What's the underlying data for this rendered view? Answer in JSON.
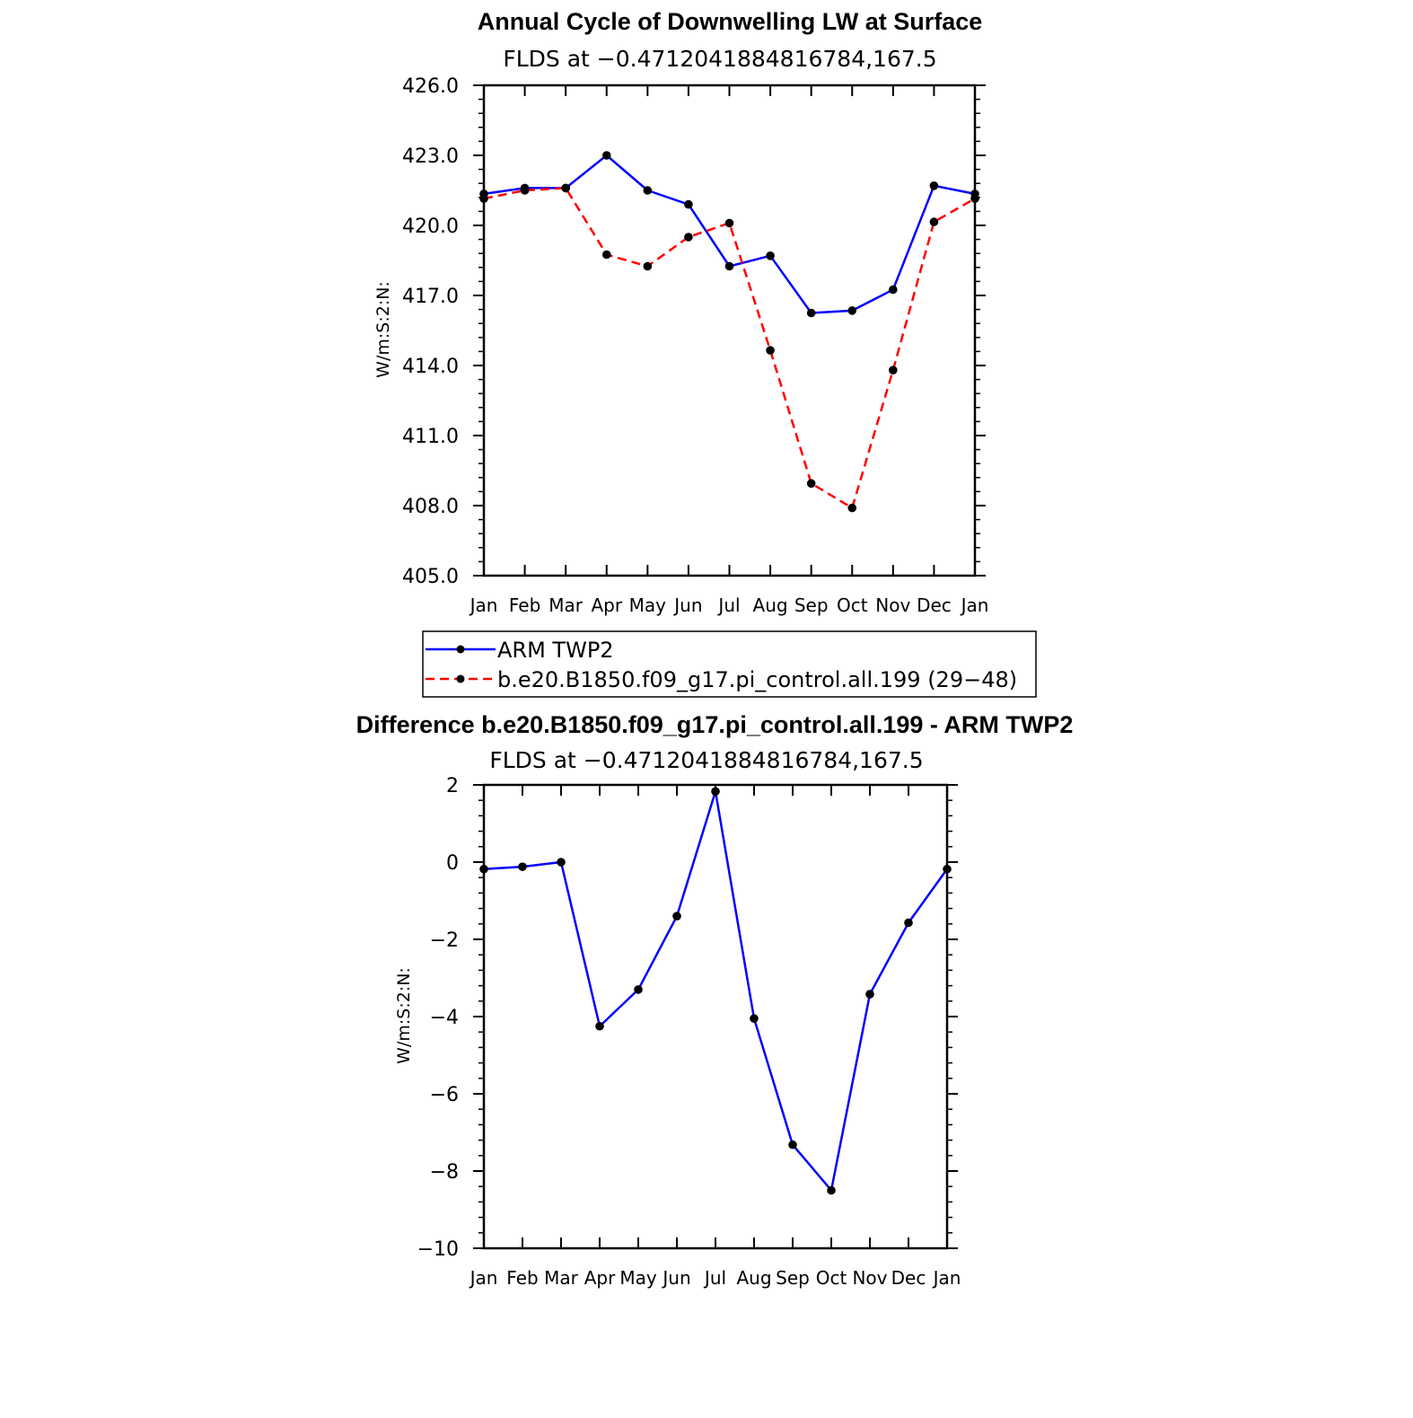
{
  "chart_data": [
    {
      "type": "line",
      "title": "Annual Cycle of Downwelling LW at Surface",
      "subtitle": "FLDS at −0.4712041884816784,167.5",
      "ylabel": "W/m:S:2:N:",
      "xlabel": "",
      "categories": [
        "Jan",
        "Feb",
        "Mar",
        "Apr",
        "May",
        "Jun",
        "Jul",
        "Aug",
        "Sep",
        "Oct",
        "Nov",
        "Dec",
        "Jan"
      ],
      "ylim": [
        405.0,
        426.0
      ],
      "yticks": [
        "405.0",
        "408.0",
        "411.0",
        "414.0",
        "417.0",
        "420.0",
        "423.0",
        "426.0"
      ],
      "ytick_values": [
        405,
        408,
        411,
        414,
        417,
        420,
        423,
        426
      ],
      "series": [
        {
          "name": "ARM TWP2",
          "color": "#0000ff",
          "dash": "solid",
          "values": [
            421.35,
            421.6,
            421.6,
            423.0,
            421.5,
            420.9,
            418.25,
            418.7,
            416.25,
            416.35,
            417.25,
            421.7,
            421.35
          ]
        },
        {
          "name": "b.e20.B1850.f09_g17.pi_control.all.199 (29−48)",
          "color": "#ff0000",
          "dash": "dashed",
          "values": [
            421.15,
            421.5,
            421.6,
            418.75,
            418.25,
            419.5,
            420.1,
            414.65,
            408.95,
            407.9,
            413.8,
            420.15,
            421.15
          ]
        }
      ],
      "legend": "below"
    },
    {
      "type": "line",
      "title": "Difference b.e20.B1850.f09_g17.pi_control.all.199 - ARM TWP2",
      "subtitle": "FLDS at −0.4712041884816784,167.5",
      "ylabel": "W/m:S:2:N:",
      "xlabel": "",
      "categories": [
        "Jan",
        "Feb",
        "Mar",
        "Apr",
        "May",
        "Jun",
        "Jul",
        "Aug",
        "Sep",
        "Oct",
        "Nov",
        "Dec",
        "Jan"
      ],
      "ylim": [
        -10,
        2
      ],
      "yticks": [
        "−10",
        "−8",
        "−6",
        "−4",
        "−2",
        "0",
        "2"
      ],
      "ytick_values": [
        -10,
        -8,
        -6,
        -4,
        -2,
        0,
        2
      ],
      "series": [
        {
          "color": "#0000ff",
          "dash": "solid",
          "values": [
            -0.18,
            -0.12,
            0.0,
            -4.25,
            -3.3,
            -1.4,
            1.83,
            -4.05,
            -7.32,
            -8.5,
            -3.42,
            -1.57,
            -0.18
          ]
        }
      ]
    }
  ]
}
